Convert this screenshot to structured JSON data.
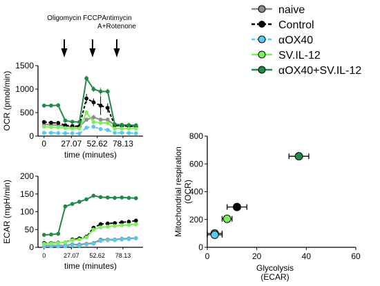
{
  "legend": {
    "items": [
      {
        "label": "naive",
        "color": "#8c8c8c",
        "line": "solid"
      },
      {
        "label": "Control",
        "color": "#000000",
        "line": "dashed"
      },
      {
        "label": "αOX40",
        "color": "#5bc8f0",
        "line": "dashed"
      },
      {
        "label": "SV.IL-12",
        "color": "#7cf05a",
        "line": "solid"
      },
      {
        "label": "αOX40+SV.IL-12",
        "color": "#1f8a46",
        "line": "solid"
      }
    ]
  },
  "injections": [
    {
      "label": "Oligomycin",
      "x": 20
    },
    {
      "label": "FCCP",
      "x": 48
    },
    {
      "label": "Antimycin A+Rotenone",
      "label_lines": [
        "Antimycin",
        "A+Rotenone"
      ],
      "x": 72
    }
  ],
  "chart_data": [
    {
      "id": "ocr",
      "type": "line",
      "ylabel": "OCR (pmol/min)",
      "xlabel": "time (minutes)",
      "ylim": [
        0,
        1500
      ],
      "yticks": [
        0,
        500,
        1000,
        1500
      ],
      "xlim": [
        -6,
        98
      ],
      "xticks": [
        0,
        27.07,
        52.62,
        78.13
      ],
      "xtick_labels": [
        "0",
        "27.07",
        "52.62",
        "78.13"
      ],
      "x": [
        0,
        7,
        14,
        21,
        28,
        35,
        42,
        49,
        56,
        63,
        70,
        77,
        84,
        91
      ],
      "series": [
        {
          "name": "naive",
          "color": "#8c8c8c",
          "dashed": false,
          "values": [
            250,
            240,
            235,
            210,
            200,
            200,
            350,
            400,
            350,
            350,
            220,
            215,
            210,
            205
          ],
          "errors": [
            20,
            20,
            20,
            20,
            20,
            20,
            40,
            50,
            40,
            40,
            20,
            20,
            20,
            20
          ]
        },
        {
          "name": "Control",
          "color": "#000000",
          "dashed": true,
          "values": [
            300,
            285,
            280,
            230,
            215,
            210,
            800,
            720,
            650,
            600,
            230,
            220,
            210,
            200
          ],
          "errors": [
            15,
            15,
            15,
            15,
            15,
            15,
            100,
            80,
            200,
            100,
            20,
            20,
            15,
            15
          ]
        },
        {
          "name": "αOX40",
          "color": "#5bc8f0",
          "dashed": true,
          "values": [
            70,
            70,
            65,
            60,
            60,
            55,
            180,
            200,
            150,
            130,
            70,
            70,
            65,
            60
          ],
          "errors": [
            10,
            10,
            10,
            10,
            10,
            10,
            40,
            40,
            40,
            40,
            10,
            10,
            10,
            10
          ]
        },
        {
          "name": "SV.IL-12",
          "color": "#7cf05a",
          "dashed": false,
          "values": [
            200,
            190,
            185,
            170,
            160,
            160,
            500,
            300,
            280,
            280,
            160,
            160,
            160,
            160
          ],
          "errors": [
            15,
            15,
            15,
            15,
            15,
            15,
            50,
            50,
            40,
            40,
            15,
            15,
            15,
            15
          ]
        },
        {
          "name": "αOX40+SV.IL-12",
          "color": "#1f8a46",
          "dashed": false,
          "values": [
            650,
            650,
            655,
            330,
            305,
            300,
            1230,
            1000,
            950,
            950,
            250,
            240,
            235,
            230
          ],
          "errors": [
            20,
            20,
            20,
            20,
            20,
            20,
            60,
            60,
            80,
            60,
            20,
            20,
            20,
            20
          ]
        }
      ]
    },
    {
      "id": "ecar",
      "type": "line",
      "ylabel": "ECAR (mpH/min)",
      "xlabel": "time (minutes)",
      "ylim": [
        0,
        200
      ],
      "yticks": [
        0,
        50,
        100,
        150,
        200
      ],
      "xlim": [
        -6,
        98
      ],
      "xticks": [
        0,
        27.07,
        52.62,
        78.13
      ],
      "xtick_labels": [
        "0",
        "27.07",
        "52.62",
        "78.13"
      ],
      "x": [
        0,
        7,
        14,
        21,
        28,
        35,
        42,
        49,
        56,
        63,
        70,
        77,
        84,
        91
      ],
      "series": [
        {
          "name": "naive",
          "color": "#8c8c8c",
          "dashed": false,
          "values": [
            5,
            5,
            5,
            5,
            8,
            8,
            10,
            12,
            22,
            22,
            22,
            24,
            25,
            26
          ],
          "errors": [
            2,
            2,
            2,
            2,
            2,
            2,
            2,
            2,
            3,
            3,
            3,
            3,
            4,
            4
          ]
        },
        {
          "name": "Control",
          "color": "#000000",
          "dashed": true,
          "values": [
            12,
            12,
            13,
            14,
            22,
            25,
            30,
            55,
            65,
            67,
            68,
            70,
            72,
            75
          ],
          "errors": [
            2,
            2,
            2,
            2,
            2,
            3,
            3,
            4,
            4,
            4,
            4,
            4,
            5,
            5
          ]
        },
        {
          "name": "αOX40",
          "color": "#5bc8f0",
          "dashed": true,
          "values": [
            3,
            3,
            3,
            3,
            5,
            5,
            8,
            10,
            18,
            20,
            20,
            22,
            23,
            25
          ],
          "errors": [
            2,
            2,
            2,
            2,
            2,
            2,
            2,
            2,
            3,
            3,
            3,
            3,
            3,
            3
          ]
        },
        {
          "name": "SV.IL-12",
          "color": "#7cf05a",
          "dashed": false,
          "values": [
            10,
            11,
            12,
            14,
            20,
            22,
            28,
            50,
            56,
            58,
            60,
            62,
            63,
            65
          ],
          "errors": [
            2,
            2,
            2,
            2,
            2,
            2,
            3,
            3,
            3,
            3,
            3,
            3,
            3,
            3
          ]
        },
        {
          "name": "αOX40+SV.IL-12",
          "color": "#1f8a46",
          "dashed": false,
          "values": [
            35,
            36,
            38,
            115,
            122,
            128,
            135,
            145,
            141,
            140,
            139,
            140,
            139,
            138
          ],
          "errors": [
            2,
            2,
            2,
            4,
            4,
            4,
            4,
            4,
            3,
            3,
            3,
            3,
            3,
            3
          ]
        }
      ]
    },
    {
      "id": "energy",
      "type": "scatter",
      "xlabel_lines": [
        "Glycolysis",
        "(ECAR)"
      ],
      "ylabel_lines": [
        "Mitochondrial respiration",
        "(OCR)"
      ],
      "xlim": [
        0,
        60
      ],
      "xticks": [
        0,
        20,
        40,
        60
      ],
      "ylim": [
        0,
        800
      ],
      "yticks": [
        0,
        200,
        400,
        600,
        800
      ],
      "points": [
        {
          "name": "naive",
          "color": "#8c8c8c",
          "x": 3,
          "y": 100,
          "xerr": 3,
          "yerr": 20
        },
        {
          "name": "Control",
          "color": "#000000",
          "x": 12,
          "y": 290,
          "xerr": 4,
          "yerr": 20
        },
        {
          "name": "αOX40",
          "color": "#5bc8f0",
          "x": 3,
          "y": 90,
          "xerr": 3,
          "yerr": 20
        },
        {
          "name": "SV.IL-12",
          "color": "#7cf05a",
          "x": 8,
          "y": 205,
          "xerr": 2,
          "yerr": 20
        },
        {
          "name": "αOX40+SV.IL-12",
          "color": "#1f8a46",
          "x": 37,
          "y": 655,
          "xerr": 4,
          "yerr": 20
        }
      ]
    }
  ]
}
